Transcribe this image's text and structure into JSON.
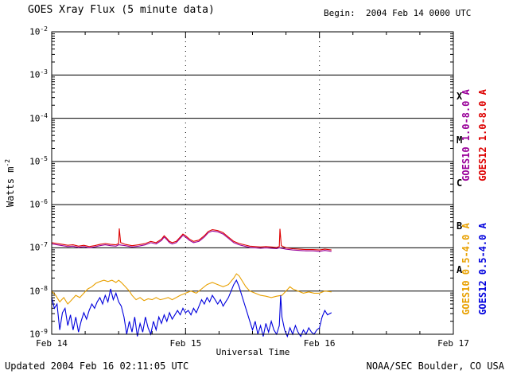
{
  "header": {
    "title": "GOES Xray Flux (5 minute data)",
    "begin_label": "Begin:  2004 Feb 14 0000 UTC"
  },
  "footer": {
    "updated": "Updated 2004 Feb 16 02:11:05 UTC",
    "credit": "NOAA/SEC Boulder, CO USA"
  },
  "chart_data": {
    "type": "line",
    "title": "GOES Xray Flux (5 minute data)",
    "xlabel": "Universal Time",
    "ylabel": "Watts m^-2",
    "ylabel_base": "Watts m",
    "ylabel_exp": "-2",
    "x_days": 3,
    "x_ticks": [
      "Feb 14",
      "Feb 15",
      "Feb 16",
      "Feb 17"
    ],
    "y_exponents": [
      -2,
      -3,
      -4,
      -5,
      -6,
      -7,
      -8,
      -9
    ],
    "ylim": [
      "1e-9",
      "1e-2"
    ],
    "grid": "horizontal solid per decade, vertical dotted per day",
    "legend_position": "right-rotated",
    "flare_classes": [
      {
        "label": "X",
        "log_center": -3.5
      },
      {
        "label": "M",
        "log_center": -4.5
      },
      {
        "label": "C",
        "log_center": -5.5
      },
      {
        "label": "B",
        "log_center": -6.5
      },
      {
        "label": "A",
        "log_center": -7.5
      }
    ],
    "series": [
      {
        "name": "GOES10 1.0-8.0 A",
        "color": "#990099",
        "points": [
          [
            0.0,
            -6.91
          ],
          [
            0.04,
            -6.93
          ],
          [
            0.08,
            -6.95
          ],
          [
            0.12,
            -6.97
          ],
          [
            0.16,
            -6.96
          ],
          [
            0.2,
            -6.99
          ],
          [
            0.24,
            -6.97
          ],
          [
            0.28,
            -7.0
          ],
          [
            0.32,
            -6.98
          ],
          [
            0.36,
            -6.95
          ],
          [
            0.4,
            -6.93
          ],
          [
            0.44,
            -6.95
          ],
          [
            0.48,
            -6.96
          ],
          [
            0.5,
            -6.93
          ],
          [
            0.55,
            -6.95
          ],
          [
            0.6,
            -6.98
          ],
          [
            0.65,
            -6.96
          ],
          [
            0.7,
            -6.93
          ],
          [
            0.74,
            -6.88
          ],
          [
            0.78,
            -6.91
          ],
          [
            0.82,
            -6.83
          ],
          [
            0.84,
            -6.75
          ],
          [
            0.86,
            -6.81
          ],
          [
            0.88,
            -6.88
          ],
          [
            0.9,
            -6.91
          ],
          [
            0.93,
            -6.88
          ],
          [
            0.96,
            -6.78
          ],
          [
            0.98,
            -6.71
          ],
          [
            1.0,
            -6.75
          ],
          [
            1.03,
            -6.83
          ],
          [
            1.06,
            -6.88
          ],
          [
            1.1,
            -6.85
          ],
          [
            1.14,
            -6.75
          ],
          [
            1.17,
            -6.65
          ],
          [
            1.2,
            -6.61
          ],
          [
            1.24,
            -6.63
          ],
          [
            1.28,
            -6.68
          ],
          [
            1.32,
            -6.78
          ],
          [
            1.36,
            -6.88
          ],
          [
            1.4,
            -6.93
          ],
          [
            1.44,
            -6.96
          ],
          [
            1.48,
            -6.99
          ],
          [
            1.52,
            -7.0
          ],
          [
            1.56,
            -7.01
          ],
          [
            1.6,
            -7.0
          ],
          [
            1.64,
            -7.01
          ],
          [
            1.68,
            -7.02
          ],
          [
            1.7,
            -7.0
          ],
          [
            1.75,
            -7.03
          ],
          [
            1.8,
            -7.05
          ],
          [
            1.85,
            -7.06
          ],
          [
            1.9,
            -7.07
          ],
          [
            1.95,
            -7.07
          ],
          [
            2.0,
            -7.08
          ],
          [
            2.04,
            -7.06
          ],
          [
            2.09,
            -7.08
          ]
        ]
      },
      {
        "name": "GOES12 1.0-8.0 A",
        "color": "#dd0000",
        "points": [
          [
            0.0,
            -6.88
          ],
          [
            0.04,
            -6.9
          ],
          [
            0.08,
            -6.92
          ],
          [
            0.12,
            -6.94
          ],
          [
            0.16,
            -6.93
          ],
          [
            0.2,
            -6.96
          ],
          [
            0.24,
            -6.94
          ],
          [
            0.28,
            -6.97
          ],
          [
            0.32,
            -6.95
          ],
          [
            0.36,
            -6.92
          ],
          [
            0.4,
            -6.9
          ],
          [
            0.44,
            -6.92
          ],
          [
            0.48,
            -6.93
          ],
          [
            0.5,
            -6.9
          ],
          [
            0.505,
            -6.55
          ],
          [
            0.515,
            -6.88
          ],
          [
            0.55,
            -6.92
          ],
          [
            0.6,
            -6.95
          ],
          [
            0.65,
            -6.93
          ],
          [
            0.7,
            -6.9
          ],
          [
            0.74,
            -6.85
          ],
          [
            0.78,
            -6.88
          ],
          [
            0.82,
            -6.8
          ],
          [
            0.84,
            -6.72
          ],
          [
            0.86,
            -6.78
          ],
          [
            0.88,
            -6.85
          ],
          [
            0.9,
            -6.88
          ],
          [
            0.93,
            -6.85
          ],
          [
            0.96,
            -6.75
          ],
          [
            0.98,
            -6.68
          ],
          [
            1.0,
            -6.72
          ],
          [
            1.03,
            -6.8
          ],
          [
            1.06,
            -6.85
          ],
          [
            1.1,
            -6.82
          ],
          [
            1.14,
            -6.72
          ],
          [
            1.17,
            -6.62
          ],
          [
            1.2,
            -6.58
          ],
          [
            1.24,
            -6.6
          ],
          [
            1.28,
            -6.65
          ],
          [
            1.32,
            -6.75
          ],
          [
            1.36,
            -6.85
          ],
          [
            1.4,
            -6.9
          ],
          [
            1.44,
            -6.93
          ],
          [
            1.48,
            -6.96
          ],
          [
            1.52,
            -6.97
          ],
          [
            1.56,
            -6.98
          ],
          [
            1.6,
            -6.97
          ],
          [
            1.64,
            -6.98
          ],
          [
            1.68,
            -6.99
          ],
          [
            1.7,
            -6.97
          ],
          [
            1.705,
            -6.56
          ],
          [
            1.715,
            -6.95
          ],
          [
            1.75,
            -7.0
          ],
          [
            1.8,
            -7.02
          ],
          [
            1.85,
            -7.03
          ],
          [
            1.9,
            -7.04
          ],
          [
            1.95,
            -7.04
          ],
          [
            2.0,
            -7.05
          ],
          [
            2.04,
            -7.03
          ],
          [
            2.09,
            -7.05
          ]
        ]
      },
      {
        "name": "GOES10 0.5-4.0 A",
        "color": "#e8a000",
        "points": [
          [
            0.0,
            -8.0
          ],
          [
            0.03,
            -8.1
          ],
          [
            0.06,
            -8.25
          ],
          [
            0.09,
            -8.15
          ],
          [
            0.12,
            -8.3
          ],
          [
            0.15,
            -8.2
          ],
          [
            0.18,
            -8.1
          ],
          [
            0.21,
            -8.15
          ],
          [
            0.24,
            -8.05
          ],
          [
            0.27,
            -7.95
          ],
          [
            0.3,
            -7.9
          ],
          [
            0.33,
            -7.82
          ],
          [
            0.36,
            -7.78
          ],
          [
            0.39,
            -7.75
          ],
          [
            0.42,
            -7.78
          ],
          [
            0.45,
            -7.75
          ],
          [
            0.48,
            -7.8
          ],
          [
            0.5,
            -7.75
          ],
          [
            0.52,
            -7.8
          ],
          [
            0.55,
            -7.9
          ],
          [
            0.58,
            -8.0
          ],
          [
            0.6,
            -8.1
          ],
          [
            0.63,
            -8.2
          ],
          [
            0.66,
            -8.15
          ],
          [
            0.69,
            -8.22
          ],
          [
            0.72,
            -8.18
          ],
          [
            0.75,
            -8.2
          ],
          [
            0.78,
            -8.15
          ],
          [
            0.81,
            -8.2
          ],
          [
            0.84,
            -8.18
          ],
          [
            0.87,
            -8.15
          ],
          [
            0.9,
            -8.2
          ],
          [
            0.93,
            -8.15
          ],
          [
            0.96,
            -8.1
          ],
          [
            1.0,
            -8.05
          ],
          [
            1.04,
            -8.0
          ],
          [
            1.08,
            -8.05
          ],
          [
            1.12,
            -7.95
          ],
          [
            1.16,
            -7.85
          ],
          [
            1.2,
            -7.8
          ],
          [
            1.24,
            -7.85
          ],
          [
            1.28,
            -7.9
          ],
          [
            1.32,
            -7.85
          ],
          [
            1.36,
            -7.7
          ],
          [
            1.38,
            -7.6
          ],
          [
            1.4,
            -7.65
          ],
          [
            1.42,
            -7.75
          ],
          [
            1.45,
            -7.9
          ],
          [
            1.48,
            -8.0
          ],
          [
            1.52,
            -8.05
          ],
          [
            1.56,
            -8.1
          ],
          [
            1.6,
            -8.12
          ],
          [
            1.64,
            -8.15
          ],
          [
            1.68,
            -8.12
          ],
          [
            1.72,
            -8.1
          ],
          [
            1.75,
            -8.0
          ],
          [
            1.78,
            -7.9
          ],
          [
            1.8,
            -7.95
          ],
          [
            1.84,
            -8.0
          ],
          [
            1.88,
            -8.05
          ],
          [
            1.92,
            -8.02
          ],
          [
            1.96,
            -8.05
          ],
          [
            2.0,
            -8.05
          ],
          [
            2.04,
            -8.0
          ],
          [
            2.09,
            -8.02
          ]
        ]
      },
      {
        "name": "GOES12 0.5-4.0 A",
        "color": "#0000dd",
        "points": [
          [
            0.0,
            -8.15
          ],
          [
            0.02,
            -8.4
          ],
          [
            0.04,
            -8.3
          ],
          [
            0.06,
            -8.9
          ],
          [
            0.08,
            -8.5
          ],
          [
            0.1,
            -8.4
          ],
          [
            0.12,
            -8.8
          ],
          [
            0.14,
            -8.55
          ],
          [
            0.16,
            -8.9
          ],
          [
            0.18,
            -8.6
          ],
          [
            0.2,
            -8.95
          ],
          [
            0.22,
            -8.7
          ],
          [
            0.24,
            -8.5
          ],
          [
            0.26,
            -8.65
          ],
          [
            0.28,
            -8.45
          ],
          [
            0.3,
            -8.3
          ],
          [
            0.32,
            -8.4
          ],
          [
            0.34,
            -8.25
          ],
          [
            0.36,
            -8.15
          ],
          [
            0.38,
            -8.3
          ],
          [
            0.4,
            -8.1
          ],
          [
            0.42,
            -8.25
          ],
          [
            0.44,
            -7.95
          ],
          [
            0.46,
            -8.2
          ],
          [
            0.48,
            -8.05
          ],
          [
            0.5,
            -8.25
          ],
          [
            0.52,
            -8.35
          ],
          [
            0.54,
            -8.6
          ],
          [
            0.56,
            -9.0
          ],
          [
            0.58,
            -8.7
          ],
          [
            0.6,
            -8.95
          ],
          [
            0.62,
            -8.6
          ],
          [
            0.64,
            -9.05
          ],
          [
            0.66,
            -8.75
          ],
          [
            0.68,
            -8.95
          ],
          [
            0.7,
            -8.6
          ],
          [
            0.72,
            -8.85
          ],
          [
            0.74,
            -9.0
          ],
          [
            0.76,
            -8.7
          ],
          [
            0.78,
            -8.9
          ],
          [
            0.8,
            -8.6
          ],
          [
            0.82,
            -8.75
          ],
          [
            0.84,
            -8.55
          ],
          [
            0.86,
            -8.7
          ],
          [
            0.88,
            -8.5
          ],
          [
            0.9,
            -8.65
          ],
          [
            0.92,
            -8.55
          ],
          [
            0.94,
            -8.45
          ],
          [
            0.96,
            -8.55
          ],
          [
            0.98,
            -8.4
          ],
          [
            1.0,
            -8.5
          ],
          [
            1.02,
            -8.45
          ],
          [
            1.04,
            -8.55
          ],
          [
            1.06,
            -8.4
          ],
          [
            1.08,
            -8.5
          ],
          [
            1.1,
            -8.35
          ],
          [
            1.12,
            -8.2
          ],
          [
            1.14,
            -8.3
          ],
          [
            1.16,
            -8.15
          ],
          [
            1.18,
            -8.25
          ],
          [
            1.2,
            -8.1
          ],
          [
            1.22,
            -8.2
          ],
          [
            1.24,
            -8.3
          ],
          [
            1.26,
            -8.2
          ],
          [
            1.28,
            -8.35
          ],
          [
            1.3,
            -8.25
          ],
          [
            1.32,
            -8.15
          ],
          [
            1.34,
            -8.0
          ],
          [
            1.36,
            -7.85
          ],
          [
            1.38,
            -7.75
          ],
          [
            1.4,
            -7.9
          ],
          [
            1.42,
            -8.1
          ],
          [
            1.44,
            -8.3
          ],
          [
            1.46,
            -8.5
          ],
          [
            1.48,
            -8.7
          ],
          [
            1.5,
            -8.9
          ],
          [
            1.52,
            -8.7
          ],
          [
            1.54,
            -9.0
          ],
          [
            1.56,
            -8.8
          ],
          [
            1.58,
            -9.05
          ],
          [
            1.6,
            -8.75
          ],
          [
            1.62,
            -8.95
          ],
          [
            1.64,
            -8.7
          ],
          [
            1.66,
            -8.9
          ],
          [
            1.68,
            -9.0
          ],
          [
            1.7,
            -8.8
          ],
          [
            1.71,
            -8.1
          ],
          [
            1.72,
            -8.6
          ],
          [
            1.74,
            -8.9
          ],
          [
            1.76,
            -9.05
          ],
          [
            1.78,
            -8.85
          ],
          [
            1.8,
            -9.0
          ],
          [
            1.82,
            -8.8
          ],
          [
            1.84,
            -8.95
          ],
          [
            1.86,
            -9.05
          ],
          [
            1.88,
            -8.9
          ],
          [
            1.9,
            -9.0
          ],
          [
            1.92,
            -8.85
          ],
          [
            1.94,
            -8.95
          ],
          [
            1.96,
            -9.0
          ],
          [
            1.98,
            -8.9
          ],
          [
            2.0,
            -8.85
          ],
          [
            2.02,
            -8.6
          ],
          [
            2.04,
            -8.45
          ],
          [
            2.06,
            -8.55
          ],
          [
            2.09,
            -8.5
          ]
        ]
      }
    ]
  }
}
